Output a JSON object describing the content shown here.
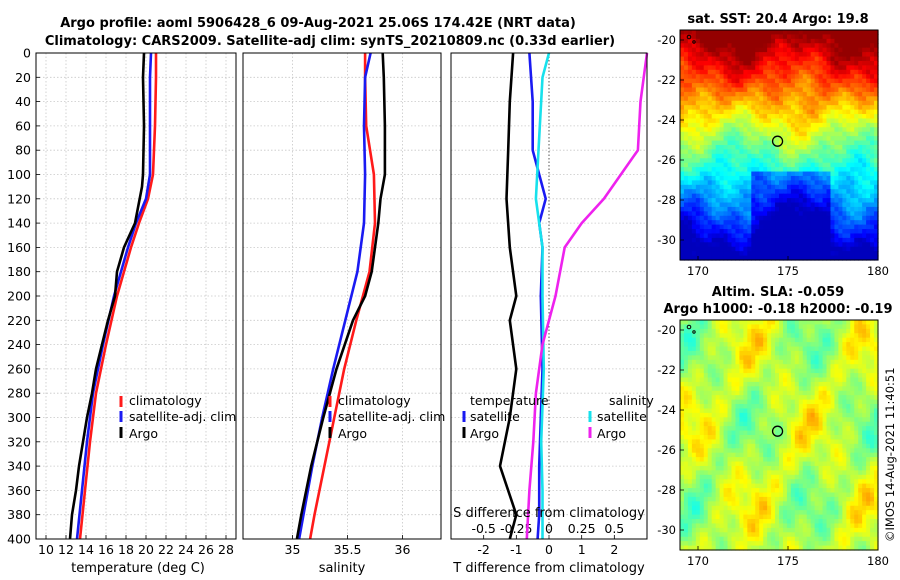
{
  "title": {
    "line1": "Argo profile: aoml 5906428_6 09-Aug-2021 25.06S 174.42E (NRT data)",
    "line2": "Climatology: CARS2009. Satellite-adj clim: synTS_20210809.nc (0.33d earlier)"
  },
  "colors": {
    "red": "#ff1a1a",
    "blue": "#1a1af2",
    "black": "#000000",
    "cyan": "#17e1ec",
    "magenta": "#ee22ee"
  },
  "chart_data": [
    {
      "type": "line",
      "name": "temperature",
      "xlabel": "temperature (deg C)",
      "xlim": [
        9,
        29
      ],
      "ylim": [
        0,
        400
      ],
      "xticks": [
        10,
        12,
        14,
        16,
        18,
        20,
        22,
        24,
        26,
        28
      ],
      "yticks": [
        0,
        20,
        40,
        60,
        80,
        100,
        120,
        140,
        160,
        180,
        200,
        220,
        240,
        260,
        280,
        300,
        320,
        340,
        360,
        380,
        400
      ],
      "legend": [
        "climatology",
        "satellite-adj. clim",
        "Argo"
      ],
      "series": [
        {
          "name": "climatology",
          "color": "red",
          "depth": [
            0,
            20,
            60,
            100,
            120,
            140,
            160,
            180,
            200,
            240,
            280,
            320,
            360,
            400
          ],
          "values": [
            21.0,
            21.0,
            20.9,
            20.7,
            20.2,
            19.3,
            18.5,
            17.8,
            17.1,
            16.0,
            15.0,
            14.4,
            13.9,
            13.4
          ]
        },
        {
          "name": "satellite-adj. clim",
          "color": "blue",
          "depth": [
            0,
            20,
            60,
            100,
            120,
            140,
            160,
            180,
            200,
            240,
            280,
            320,
            360,
            400
          ],
          "values": [
            20.5,
            20.4,
            20.4,
            20.4,
            20.0,
            19.0,
            18.2,
            17.5,
            16.8,
            15.7,
            14.7,
            14.1,
            13.6,
            13.1
          ]
        },
        {
          "name": "Argo",
          "color": "black",
          "depth": [
            0,
            20,
            60,
            100,
            110,
            140,
            160,
            180,
            200,
            220,
            240,
            260,
            280,
            300,
            320,
            340,
            360,
            380,
            400
          ],
          "values": [
            19.8,
            19.7,
            19.8,
            19.7,
            19.6,
            18.9,
            17.8,
            17.1,
            16.9,
            16.2,
            15.6,
            15.0,
            14.6,
            14.1,
            13.7,
            13.3,
            13.0,
            12.6,
            12.4
          ]
        }
      ]
    },
    {
      "type": "line",
      "name": "salinity",
      "xlabel": "salinity",
      "xlim": [
        34.55,
        36.35
      ],
      "ylim": [
        0,
        400
      ],
      "xticks": [
        35,
        35.5,
        36
      ],
      "legend": [
        "climatology",
        "satellite-adj. clim",
        "Argo"
      ],
      "series": [
        {
          "name": "climatology",
          "color": "red",
          "depth": [
            0,
            20,
            60,
            100,
            140,
            180,
            220,
            260,
            300,
            340,
            380,
            400
          ],
          "values": [
            35.66,
            35.66,
            35.67,
            35.74,
            35.75,
            35.7,
            35.58,
            35.47,
            35.38,
            35.29,
            35.2,
            35.16
          ]
        },
        {
          "name": "satellite-adj. clim",
          "color": "blue",
          "depth": [
            0,
            20,
            60,
            100,
            140,
            180,
            220,
            260,
            300,
            340,
            380,
            400
          ],
          "values": [
            35.71,
            35.66,
            35.65,
            35.66,
            35.65,
            35.59,
            35.48,
            35.37,
            35.27,
            35.18,
            35.1,
            35.06
          ]
        },
        {
          "name": "Argo",
          "color": "black",
          "depth": [
            0,
            20,
            60,
            100,
            120,
            140,
            160,
            180,
            200,
            220,
            260,
            300,
            340,
            380,
            400
          ],
          "values": [
            35.82,
            35.83,
            35.84,
            35.84,
            35.8,
            35.78,
            35.75,
            35.72,
            35.66,
            35.55,
            35.4,
            35.28,
            35.17,
            35.08,
            35.04
          ]
        }
      ]
    },
    {
      "type": "line",
      "name": "difference from climatology",
      "xlabel": "T difference from climatology",
      "x2label": "S difference from climatology",
      "xlim": [
        -3,
        3
      ],
      "ylim": [
        0,
        400
      ],
      "xticks": [
        -2,
        -1,
        0,
        1,
        2
      ],
      "x2ticks": [
        "-0.5",
        "-0.25",
        "0",
        "0.25",
        "0.5"
      ],
      "legend_left_title": "temperature",
      "legend_right_title": "salinity",
      "legend": [
        "satellite",
        "Argo",
        "satellite",
        "Argo"
      ],
      "series": [
        {
          "name": "T satellite",
          "color": "blue",
          "depth": [
            0,
            40,
            80,
            100,
            120,
            140,
            160,
            200,
            260,
            300,
            340,
            380,
            400
          ],
          "values": [
            -0.6,
            -0.5,
            -0.5,
            -0.3,
            -0.1,
            -0.3,
            -0.2,
            -0.25,
            -0.2,
            -0.25,
            -0.3,
            -0.3,
            -0.35
          ]
        },
        {
          "name": "T Argo",
          "color": "black",
          "depth": [
            0,
            40,
            80,
            120,
            160,
            200,
            220,
            260,
            300,
            340,
            380,
            400
          ],
          "values": [
            -1.1,
            -1.2,
            -1.25,
            -1.3,
            -1.2,
            -1.0,
            -1.2,
            -1.0,
            -1.2,
            -1.5,
            -1.0,
            -1.2
          ]
        },
        {
          "name": "S satellite",
          "color": "cyan",
          "depth": [
            0,
            20,
            80,
            120,
            160,
            200,
            260,
            320,
            360,
            400
          ],
          "values": [
            0.0,
            -0.05,
            -0.08,
            -0.1,
            -0.05,
            -0.05,
            -0.04,
            -0.06,
            -0.05,
            -0.05
          ]
        },
        {
          "name": "S Argo",
          "color": "magenta",
          "depth": [
            0,
            40,
            80,
            120,
            140,
            160,
            200,
            240,
            280,
            320,
            360,
            400
          ],
          "values": [
            0.75,
            0.7,
            0.68,
            0.42,
            0.25,
            0.12,
            0.05,
            -0.05,
            -0.1,
            -0.12,
            -0.15,
            -0.17
          ]
        }
      ]
    },
    {
      "type": "heatmap",
      "name": "sst map",
      "title": "sat. SST: 20.4 Argo: 19.8",
      "xlim": [
        169,
        180
      ],
      "ylim": [
        -31,
        -19.5
      ],
      "xticks": [
        170,
        175,
        180
      ],
      "yticks": [
        -20,
        -22,
        -24,
        -26,
        -28,
        -30
      ],
      "argo_position": {
        "lon": 174.42,
        "lat": -25.06
      }
    },
    {
      "type": "heatmap",
      "name": "sla map",
      "title": "Altim. SLA: -0.059",
      "subtitle": "Argo h1000: -0.18 h2000: -0.19",
      "xlim": [
        169,
        180
      ],
      "ylim": [
        -31,
        -19.5
      ],
      "xticks": [
        170,
        175,
        180
      ],
      "yticks": [
        -20,
        -22,
        -24,
        -26,
        -28,
        -30
      ],
      "argo_position": {
        "lon": 174.42,
        "lat": -25.06
      }
    }
  ],
  "watermark": "©IMOS 14-Aug-2021 11:40:51"
}
